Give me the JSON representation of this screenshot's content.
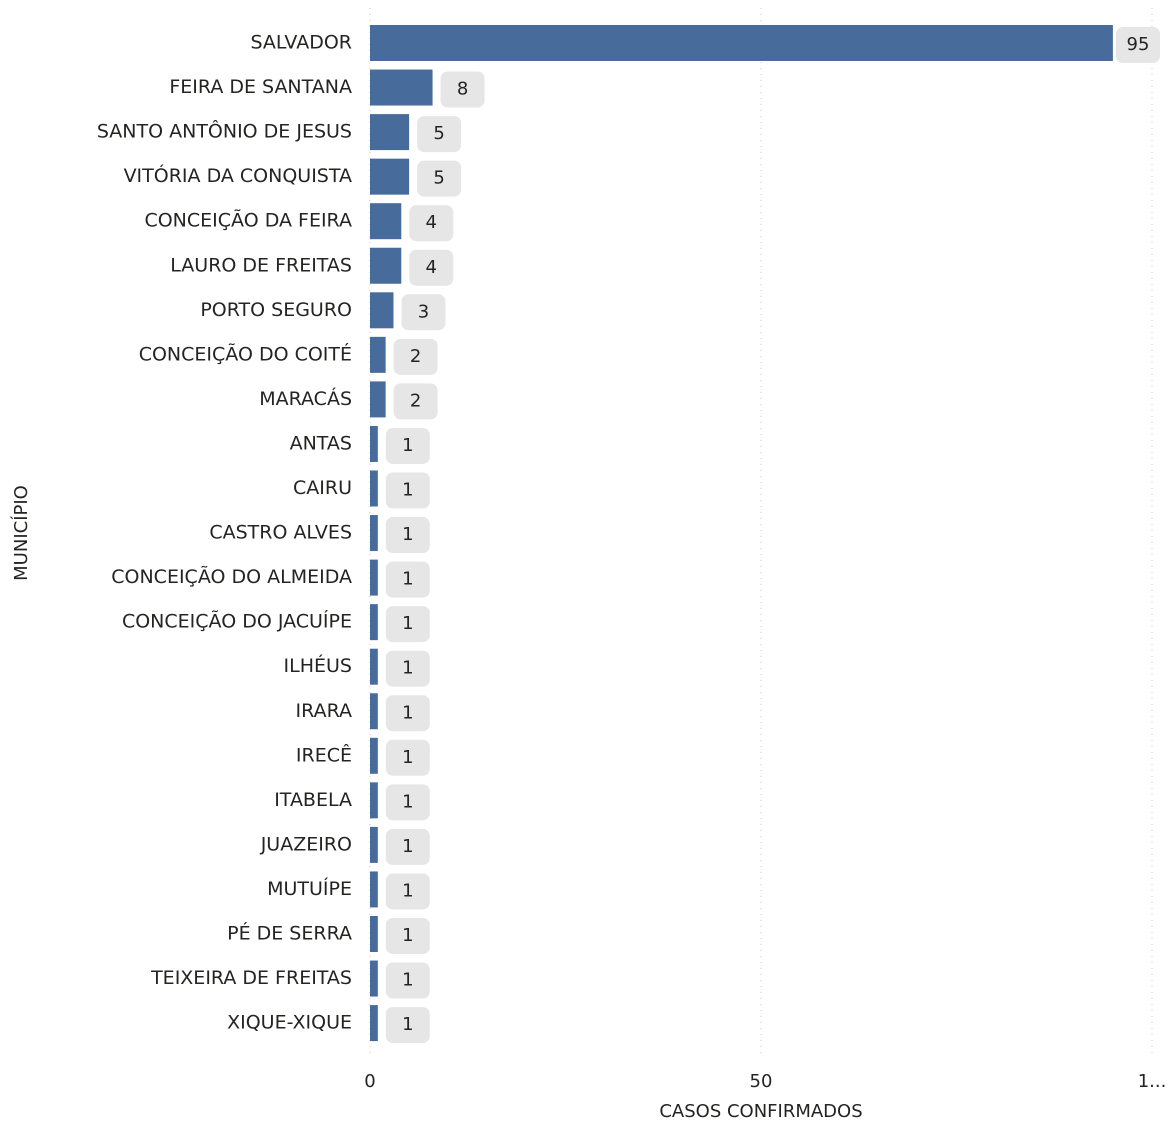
{
  "chart_data": {
    "type": "bar",
    "orientation": "horizontal",
    "x_label": "CASOS CONFIRMADOS",
    "y_label": "MUNICÍPIO",
    "categories": [
      "SALVADOR",
      "FEIRA DE SANTANA",
      "SANTO ANTÔNIO DE JESUS",
      "VITÓRIA DA CONQUISTA",
      "CONCEIÇÃO DA FEIRA",
      "LAURO DE FREITAS",
      "PORTO SEGURO",
      "CONCEIÇÃO DO COITÉ",
      "MARACÁS",
      "ANTAS",
      "CAIRU",
      "CASTRO ALVES",
      "CONCEIÇÃO DO ALMEIDA",
      "CONCEIÇÃO DO JACUÍPE",
      "ILHÉUS",
      "IRARA",
      "IRECÊ",
      "ITABELA",
      "JUAZEIRO",
      "MUTUÍPE",
      "PÉ DE SERRA",
      "TEIXEIRA DE FREITAS",
      "XIQUE-XIQUE"
    ],
    "values": [
      95,
      8,
      5,
      5,
      4,
      4,
      3,
      2,
      2,
      1,
      1,
      1,
      1,
      1,
      1,
      1,
      1,
      1,
      1,
      1,
      1,
      1,
      1
    ],
    "color": "#476b9a",
    "xlim": [
      0,
      100
    ],
    "xticks": [
      0,
      50,
      {
        "value": 100,
        "label": "1..."
      }
    ],
    "grid": true
  }
}
